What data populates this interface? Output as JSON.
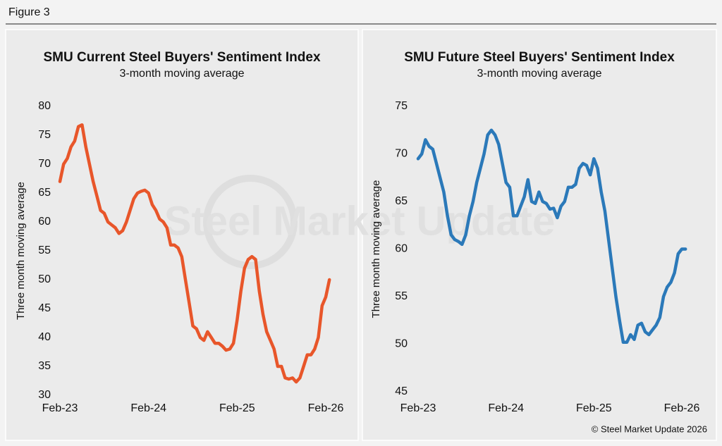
{
  "header": {
    "title": "Figure 3"
  },
  "watermark": "Steel Market Update",
  "footer": "© Steel Market Update 2026",
  "chart_data": [
    {
      "type": "line",
      "title": "SMU Current Steel Buyers' Sentiment Index",
      "subtitle": "3-month moving average",
      "y_label": "Three month moving average",
      "categories": [
        "Feb-23",
        null,
        null,
        null,
        null,
        null,
        null,
        null,
        null,
        null,
        null,
        null,
        null,
        null,
        null,
        null,
        null,
        null,
        null,
        null,
        null,
        null,
        null,
        null,
        "Feb-24",
        null,
        null,
        null,
        null,
        null,
        null,
        null,
        null,
        null,
        null,
        null,
        null,
        null,
        null,
        null,
        null,
        null,
        null,
        null,
        null,
        null,
        null,
        null,
        "Feb-25",
        null,
        null,
        null,
        null,
        null,
        null,
        null,
        null,
        null,
        null,
        null,
        null,
        null,
        null,
        null,
        null,
        null,
        null,
        null,
        null,
        null,
        null,
        null,
        "Feb-26",
        null
      ],
      "series": [
        {
          "color": "#e8562a",
          "values": [
            67,
            70,
            71,
            73,
            74,
            76.5,
            76.8,
            73,
            70,
            67,
            64.5,
            62,
            61.5,
            60,
            59.5,
            59,
            58,
            58.5,
            60,
            62,
            64,
            65,
            65.3,
            65.5,
            65,
            63,
            62,
            60.5,
            60,
            59,
            56,
            56,
            55.5,
            54,
            50,
            46,
            42,
            41.5,
            40,
            39.5,
            41,
            40,
            39,
            39,
            38.5,
            37.8,
            38,
            39,
            43,
            48,
            52,
            53.5,
            54,
            53.5,
            48,
            44,
            41,
            39.5,
            38,
            35,
            35,
            33,
            32.8,
            33,
            32.3,
            33,
            35,
            37,
            37,
            38,
            40,
            45.5,
            47,
            50
          ]
        }
      ],
      "ylim": [
        30,
        80
      ],
      "yticks": [
        30,
        35,
        40,
        45,
        50,
        55,
        60,
        65,
        70,
        75,
        80
      ]
    },
    {
      "type": "line",
      "title": "SMU Future Steel Buyers' Sentiment Index",
      "subtitle": "3-month moving average",
      "y_label": "Three month moving average",
      "categories": [
        "Feb-23",
        null,
        null,
        null,
        null,
        null,
        null,
        null,
        null,
        null,
        null,
        null,
        null,
        null,
        null,
        null,
        null,
        null,
        null,
        null,
        null,
        null,
        null,
        null,
        "Feb-24",
        null,
        null,
        null,
        null,
        null,
        null,
        null,
        null,
        null,
        null,
        null,
        null,
        null,
        null,
        null,
        null,
        null,
        null,
        null,
        null,
        null,
        null,
        null,
        "Feb-25",
        null,
        null,
        null,
        null,
        null,
        null,
        null,
        null,
        null,
        null,
        null,
        null,
        null,
        null,
        null,
        null,
        null,
        null,
        null,
        null,
        null,
        null,
        null,
        "Feb-26",
        null
      ],
      "series": [
        {
          "color": "#2b79b9",
          "values": [
            69.5,
            70,
            71.5,
            70.8,
            70.5,
            69,
            67.5,
            66,
            63.5,
            61.5,
            61,
            60.8,
            60.5,
            61.5,
            63.5,
            65,
            67,
            68.5,
            70,
            72,
            72.5,
            72,
            71,
            69,
            67,
            66.5,
            63.5,
            63.5,
            64.5,
            65.5,
            67.3,
            65,
            64.8,
            66,
            65,
            64.8,
            64.2,
            64.3,
            63.3,
            64.5,
            65,
            66.5,
            66.5,
            66.8,
            68.5,
            69,
            68.8,
            67.8,
            69.5,
            68.5,
            66,
            64,
            61,
            58,
            55,
            52.5,
            50.2,
            50.2,
            51,
            50.5,
            52,
            52.2,
            51.3,
            51,
            51.5,
            52,
            52.8,
            55,
            56,
            56.5,
            57.5,
            59.5,
            60,
            60
          ]
        }
      ],
      "ylim": [
        45,
        75
      ],
      "yticks": [
        45,
        50,
        55,
        60,
        65,
        70,
        75
      ]
    }
  ]
}
